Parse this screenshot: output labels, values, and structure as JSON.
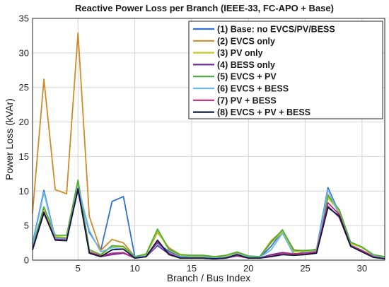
{
  "chart_data": {
    "type": "line",
    "title": "Reactive Power Loss per Branch (IEEE-33, FC-APO + Base)",
    "xlabel": "Branch / Bus Index",
    "ylabel": "Power Loss (kVAr)",
    "xlim": [
      1,
      32
    ],
    "ylim": [
      0,
      35
    ],
    "xticks": [
      5,
      10,
      15,
      20,
      25,
      30
    ],
    "yticks": [
      0,
      5,
      10,
      15,
      20,
      25,
      30,
      35
    ],
    "grid": true,
    "legend_position": "top-right",
    "x": [
      1,
      2,
      3,
      4,
      5,
      6,
      7,
      8,
      9,
      10,
      11,
      12,
      13,
      14,
      15,
      16,
      17,
      18,
      19,
      20,
      21,
      22,
      23,
      24,
      25,
      26,
      27,
      28,
      29,
      30,
      31,
      32
    ],
    "series": [
      {
        "name": "(1) Base: no EVCS/PV/BESS",
        "color": "#2f6fd0",
        "values": [
          2.4,
          10.1,
          3.2,
          3.2,
          10.8,
          4.0,
          1.4,
          8.5,
          9.2,
          0.5,
          0.7,
          2.4,
          1.3,
          0.5,
          0.5,
          0.5,
          0.4,
          0.5,
          1.1,
          0.6,
          0.4,
          2.0,
          4.2,
          0.8,
          1.2,
          1.6,
          10.5,
          6.8,
          2.0,
          1.3,
          0.5,
          0.3
        ]
      },
      {
        "name": "(2) EVCS only",
        "color": "#d08a28",
        "values": [
          6.8,
          26.2,
          10.2,
          9.6,
          32.9,
          6.3,
          1.4,
          3.0,
          2.5,
          0.5,
          0.8,
          4.0,
          1.8,
          0.8,
          0.7,
          0.7,
          0.5,
          0.6,
          1.1,
          0.6,
          0.5,
          2.8,
          4.3,
          1.5,
          1.3,
          1.6,
          9.5,
          6.9,
          2.5,
          1.9,
          0.7,
          0.4
        ]
      },
      {
        "name": "(3) PV only",
        "color": "#c8c81e",
        "values": [
          1.8,
          7.6,
          3.4,
          3.3,
          11.3,
          1.5,
          0.7,
          2.0,
          1.9,
          0.4,
          0.8,
          4.2,
          1.5,
          0.7,
          0.6,
          0.6,
          0.5,
          0.6,
          0.9,
          0.5,
          0.5,
          2.5,
          4.1,
          1.2,
          1.3,
          1.4,
          9.0,
          7.1,
          2.4,
          1.8,
          0.7,
          0.4
        ]
      },
      {
        "name": "(4) BESS only",
        "color": "#6a2ca0",
        "values": [
          1.5,
          6.8,
          3.0,
          2.9,
          10.2,
          1.1,
          0.5,
          0.8,
          1.0,
          0.3,
          0.5,
          2.1,
          0.9,
          0.3,
          0.3,
          0.3,
          0.2,
          0.3,
          0.6,
          0.3,
          0.3,
          0.8,
          1.1,
          0.9,
          1.0,
          1.1,
          7.8,
          6.2,
          2.0,
          1.3,
          0.5,
          0.2
        ]
      },
      {
        "name": "(5) EVCS + PV",
        "color": "#4caf3c",
        "values": [
          1.9,
          7.7,
          3.6,
          3.6,
          11.6,
          1.5,
          0.8,
          2.1,
          2.0,
          0.5,
          0.9,
          4.5,
          1.6,
          0.8,
          0.7,
          0.7,
          0.5,
          0.7,
          1.2,
          0.6,
          0.5,
          2.6,
          4.4,
          1.4,
          1.4,
          1.5,
          9.3,
          7.3,
          2.6,
          1.9,
          0.8,
          0.5
        ]
      },
      {
        "name": "(6) EVCS + BESS",
        "color": "#6cb8e8",
        "values": [
          2.2,
          9.8,
          3.1,
          3.0,
          10.6,
          4.3,
          1.2,
          1.8,
          1.6,
          0.4,
          0.6,
          2.3,
          1.1,
          0.4,
          0.4,
          0.4,
          0.3,
          0.4,
          0.9,
          0.4,
          0.4,
          1.5,
          3.9,
          0.8,
          1.1,
          1.3,
          10.2,
          6.5,
          2.2,
          1.4,
          0.6,
          0.3
        ]
      },
      {
        "name": "(7) PV + BESS",
        "color": "#c0287e",
        "values": [
          1.6,
          7.0,
          3.0,
          2.9,
          10.4,
          1.2,
          0.6,
          1.0,
          1.1,
          0.3,
          0.5,
          2.6,
          1.0,
          0.3,
          0.3,
          0.3,
          0.2,
          0.3,
          0.7,
          0.3,
          0.3,
          0.6,
          1.0,
          0.9,
          1.0,
          1.2,
          8.3,
          6.6,
          2.1,
          1.4,
          0.5,
          0.2
        ]
      },
      {
        "name": "(8) EVCS + PV + BESS",
        "color": "#0d1a3a",
        "values": [
          1.5,
          6.9,
          2.9,
          2.8,
          10.3,
          1.0,
          0.5,
          1.5,
          1.6,
          0.3,
          0.5,
          2.9,
          0.8,
          0.3,
          0.3,
          0.3,
          0.2,
          0.3,
          0.8,
          0.3,
          0.3,
          0.5,
          0.8,
          0.7,
          0.8,
          1.0,
          7.6,
          6.4,
          2.0,
          1.2,
          0.4,
          0.2
        ]
      }
    ]
  }
}
